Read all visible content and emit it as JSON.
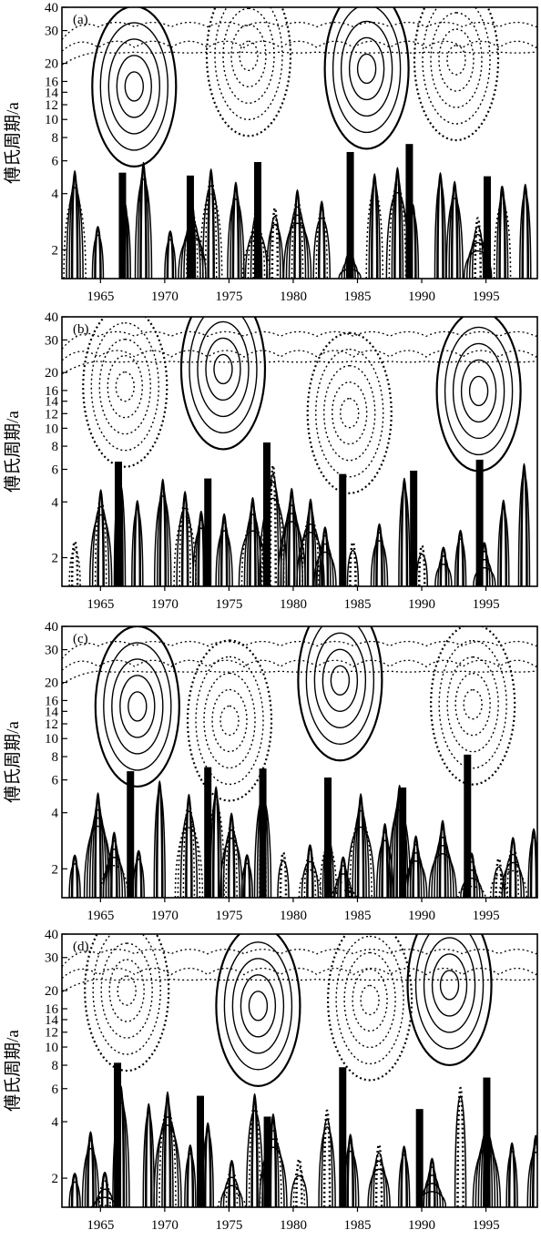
{
  "figure": {
    "background": "#ffffff",
    "ink": "#000000"
  },
  "chart_data": [
    {
      "type": "contour",
      "panel_label": "(a)",
      "ylabel": "傅氏周期/a",
      "y_scale": "log",
      "ylim": [
        1.4,
        40
      ],
      "y_ticks": [
        2,
        4,
        6,
        8,
        10,
        12,
        14,
        16,
        20,
        30,
        40
      ],
      "xlim": [
        1962,
        1999
      ],
      "x_ticks": [
        1965,
        1970,
        1975,
        1980,
        1985,
        1990,
        1995
      ],
      "contour_style": "solid = positive, dotted = negative"
    },
    {
      "type": "contour",
      "panel_label": "(b)",
      "ylabel": "傅氏周期/a",
      "y_scale": "log",
      "ylim": [
        1.4,
        40
      ],
      "y_ticks": [
        2,
        4,
        6,
        8,
        10,
        12,
        14,
        16,
        20,
        30,
        40
      ],
      "xlim": [
        1962,
        1999
      ],
      "x_ticks": [
        1965,
        1970,
        1975,
        1980,
        1985,
        1990,
        1995
      ],
      "contour_style": "solid = positive, dotted = negative"
    },
    {
      "type": "contour",
      "panel_label": "(c)",
      "ylabel": "傅氏周期/a",
      "y_scale": "log",
      "ylim": [
        1.4,
        40
      ],
      "y_ticks": [
        2,
        4,
        6,
        8,
        10,
        12,
        14,
        16,
        20,
        30,
        40
      ],
      "xlim": [
        1962,
        1999
      ],
      "x_ticks": [
        1965,
        1970,
        1975,
        1980,
        1985,
        1990,
        1995
      ],
      "contour_style": "solid = positive, dotted = negative"
    },
    {
      "type": "contour",
      "panel_label": "(d)",
      "ylabel": "傅氏周期/a",
      "y_scale": "log",
      "ylim": [
        1.4,
        40
      ],
      "y_ticks": [
        2,
        4,
        6,
        8,
        10,
        12,
        14,
        16,
        20,
        30,
        40
      ],
      "xlim": [
        1962,
        1999
      ],
      "x_ticks": [
        1965,
        1970,
        1975,
        1980,
        1985,
        1990,
        1995
      ],
      "contour_style": "solid = positive, dotted = negative"
    }
  ]
}
